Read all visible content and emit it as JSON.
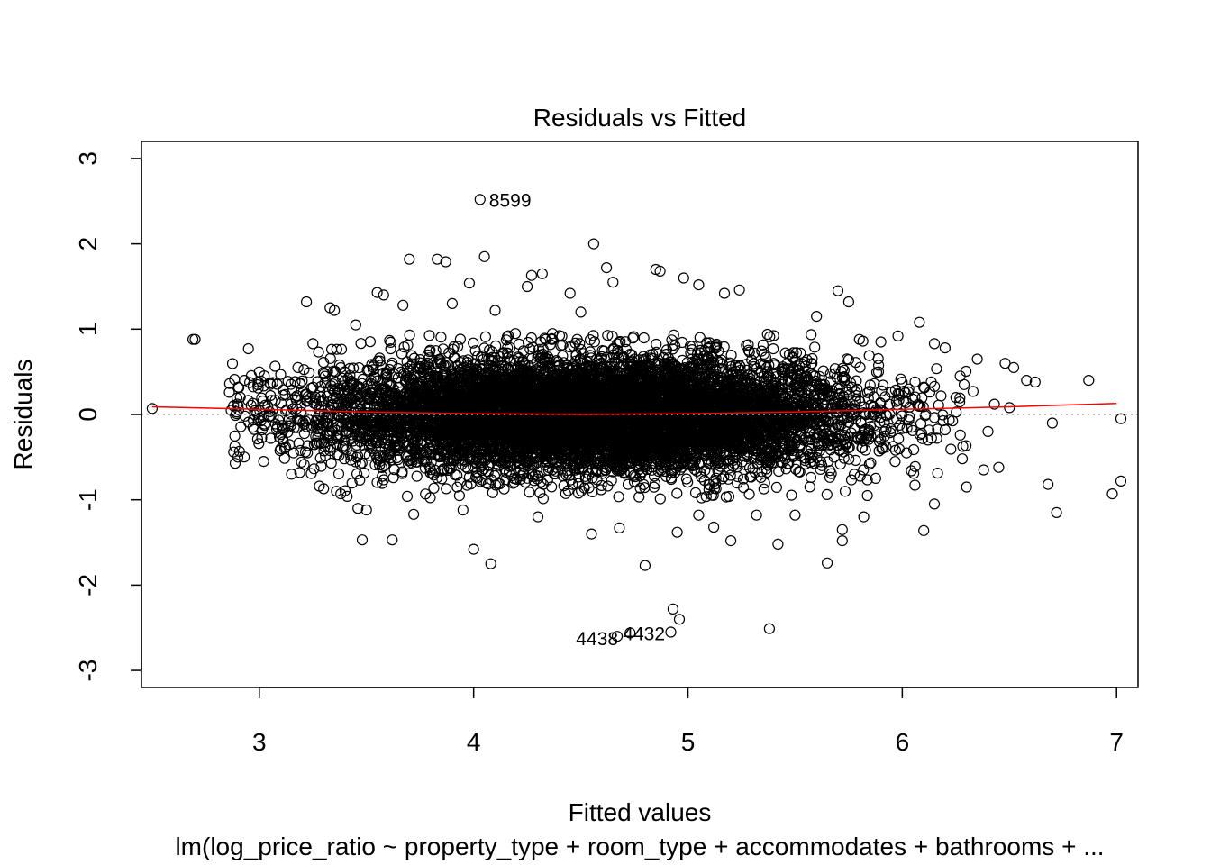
{
  "chart_data": {
    "type": "scatter",
    "title": "Residuals vs Fitted",
    "xlabel": "Fitted values",
    "ylabel": "Residuals",
    "subtitle": "lm(log_price_ratio ~ property_type + room_type + accommodates + bathrooms + ...",
    "xlim": [
      2.45,
      7.1
    ],
    "ylim": [
      -3.2,
      3.2
    ],
    "xticks": [
      3,
      4,
      5,
      6,
      7
    ],
    "yticks": [
      -3,
      -2,
      -1,
      0,
      1,
      2,
      3
    ],
    "grid": false,
    "reference_line": {
      "y": 0,
      "style": "dotted",
      "color": "#aaaaaa"
    },
    "smoother": {
      "color": "#ff0000",
      "points": [
        [
          2.5,
          0.09
        ],
        [
          3.0,
          0.06
        ],
        [
          3.5,
          0.03
        ],
        [
          4.0,
          0.01
        ],
        [
          4.5,
          0.0
        ],
        [
          5.0,
          0.01
        ],
        [
          5.5,
          0.03
        ],
        [
          6.0,
          0.06
        ],
        [
          6.5,
          0.09
        ],
        [
          7.0,
          0.13
        ]
      ]
    },
    "labeled_points": [
      {
        "label": "8599",
        "x": 4.03,
        "y": 2.52
      },
      {
        "label": "4438",
        "x": 4.67,
        "y": -2.6
      },
      {
        "label": "4432",
        "x": 4.73,
        "y": -2.56
      }
    ],
    "outlier_points": [
      [
        2.5,
        0.07
      ],
      [
        2.69,
        0.88
      ],
      [
        2.7,
        0.88
      ],
      [
        2.86,
        0.26
      ],
      [
        2.88,
        -0.44
      ],
      [
        2.9,
        -0.5
      ],
      [
        2.93,
        0.4
      ],
      [
        2.95,
        -0.09
      ],
      [
        2.97,
        0.13
      ],
      [
        3.0,
        0.5
      ],
      [
        3.02,
        -0.55
      ],
      [
        3.05,
        0.37
      ],
      [
        3.1,
        -0.4
      ],
      [
        3.15,
        -0.7
      ],
      [
        3.18,
        0.55
      ],
      [
        3.22,
        1.32
      ],
      [
        3.25,
        0.83
      ],
      [
        3.28,
        -0.84
      ],
      [
        3.3,
        -0.87
      ],
      [
        3.33,
        1.25
      ],
      [
        3.35,
        1.22
      ],
      [
        3.36,
        -0.9
      ],
      [
        3.38,
        -0.93
      ],
      [
        3.41,
        -0.96
      ],
      [
        3.45,
        1.05
      ],
      [
        3.46,
        -1.1
      ],
      [
        3.48,
        -1.47
      ],
      [
        3.5,
        -1.12
      ],
      [
        3.55,
        1.43
      ],
      [
        3.58,
        1.4
      ],
      [
        3.62,
        -1.47
      ],
      [
        3.67,
        1.28
      ],
      [
        3.7,
        1.82
      ],
      [
        3.72,
        -1.17
      ],
      [
        3.83,
        1.82
      ],
      [
        3.87,
        1.79
      ],
      [
        3.9,
        1.3
      ],
      [
        3.95,
        -1.12
      ],
      [
        3.98,
        1.54
      ],
      [
        4.0,
        -1.58
      ],
      [
        4.05,
        1.85
      ],
      [
        4.08,
        -1.75
      ],
      [
        4.1,
        1.22
      ],
      [
        4.25,
        1.5
      ],
      [
        4.27,
        1.63
      ],
      [
        4.32,
        1.65
      ],
      [
        4.3,
        -1.2
      ],
      [
        4.45,
        1.42
      ],
      [
        4.5,
        1.2
      ],
      [
        4.55,
        -1.4
      ],
      [
        4.56,
        2.0
      ],
      [
        4.62,
        1.72
      ],
      [
        4.65,
        1.55
      ],
      [
        4.68,
        -1.33
      ],
      [
        4.8,
        -1.77
      ],
      [
        4.85,
        1.7
      ],
      [
        4.87,
        1.68
      ],
      [
        4.93,
        -2.28
      ],
      [
        4.96,
        -2.4
      ],
      [
        4.92,
        -2.55
      ],
      [
        4.95,
        -1.38
      ],
      [
        4.98,
        1.6
      ],
      [
        5.05,
        1.52
      ],
      [
        5.05,
        -1.18
      ],
      [
        5.12,
        -1.32
      ],
      [
        5.17,
        1.42
      ],
      [
        5.2,
        -1.48
      ],
      [
        5.24,
        1.46
      ],
      [
        5.32,
        -1.18
      ],
      [
        5.38,
        -2.51
      ],
      [
        5.42,
        -1.52
      ],
      [
        5.5,
        -1.18
      ],
      [
        5.6,
        1.15
      ],
      [
        5.65,
        -1.74
      ],
      [
        5.7,
        1.45
      ],
      [
        5.72,
        -1.35
      ],
      [
        5.72,
        -1.48
      ],
      [
        5.75,
        1.32
      ],
      [
        5.8,
        0.88
      ],
      [
        5.82,
        -1.2
      ],
      [
        5.9,
        0.85
      ],
      [
        5.98,
        0.92
      ],
      [
        6.08,
        1.08
      ],
      [
        6.1,
        -1.36
      ],
      [
        6.15,
        0.83
      ],
      [
        6.2,
        0.78
      ],
      [
        6.27,
        0.45
      ],
      [
        6.3,
        -0.85
      ],
      [
        6.35,
        0.65
      ],
      [
        6.4,
        -0.2
      ],
      [
        6.45,
        -0.62
      ],
      [
        6.48,
        0.6
      ],
      [
        6.52,
        0.55
      ],
      [
        6.58,
        0.4
      ],
      [
        6.62,
        0.38
      ],
      [
        6.68,
        -0.82
      ],
      [
        6.7,
        -0.1
      ],
      [
        6.72,
        -1.15
      ],
      [
        6.87,
        0.4
      ],
      [
        6.98,
        -0.93
      ],
      [
        7.02,
        -0.05
      ],
      [
        7.02,
        -0.78
      ],
      [
        6.43,
        0.12
      ],
      [
        6.28,
        -0.52
      ],
      [
        6.12,
        -0.3
      ],
      [
        6.05,
        0.18
      ],
      [
        6.2,
        -0.18
      ],
      [
        6.25,
        0.2
      ],
      [
        6.1,
        0.32
      ],
      [
        6.02,
        -0.45
      ],
      [
        6.33,
        0.27
      ],
      [
        6.38,
        -0.65
      ],
      [
        6.5,
        0.08
      ],
      [
        6.15,
        -1.05
      ]
    ],
    "point_cloud": {
      "n": 9000,
      "x_mean": 4.55,
      "x_sd": 0.62,
      "y_sd": 0.33,
      "x_min": 2.85,
      "x_max": 6.3
    }
  }
}
